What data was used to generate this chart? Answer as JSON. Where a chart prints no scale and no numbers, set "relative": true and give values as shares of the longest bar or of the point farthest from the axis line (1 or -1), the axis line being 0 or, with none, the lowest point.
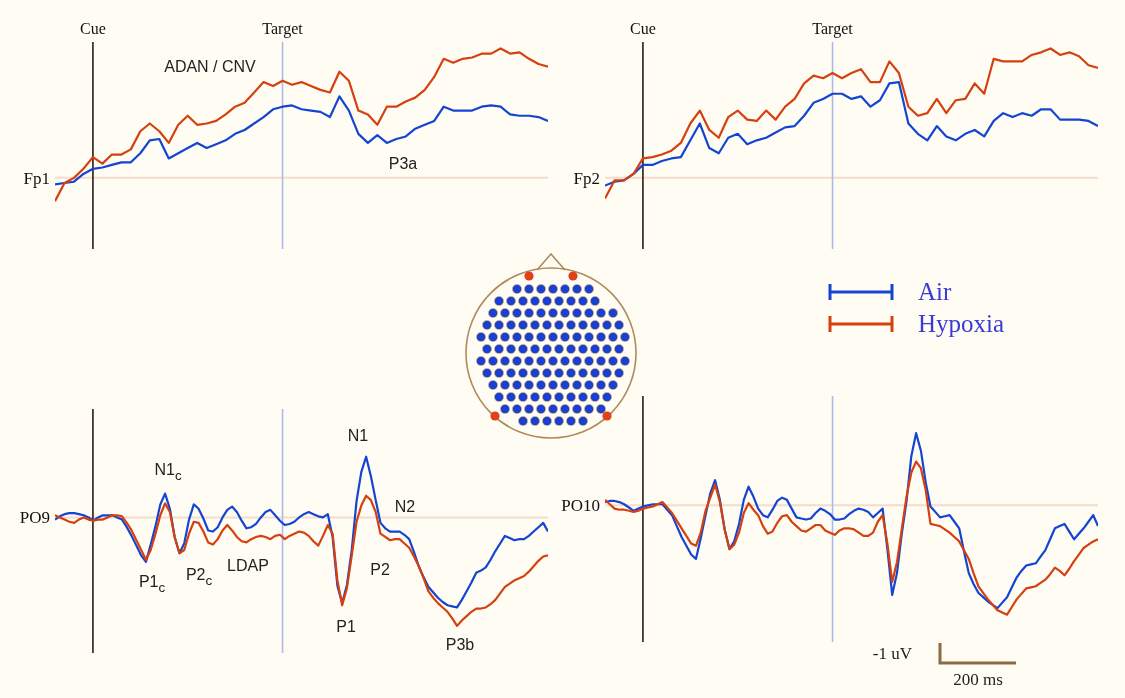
{
  "chart_data": [
    {
      "type": "line",
      "relative": true,
      "ylabel": "Fp1",
      "tick_labels": "x",
      "marker": "none",
      "line_style": "solid",
      "categories": [
        null,
        null,
        null,
        null,
        "Cue",
        null,
        null,
        null,
        null,
        null,
        null,
        null,
        null,
        null,
        null,
        null,
        null,
        null,
        null,
        null,
        null,
        null,
        null,
        null,
        "Target",
        null,
        null,
        null,
        null,
        null,
        null,
        null,
        null,
        null,
        null,
        null,
        null,
        null,
        null,
        null,
        null,
        null,
        null,
        null,
        null,
        null,
        null,
        null,
        null,
        null,
        null,
        null,
        null
      ],
      "ref_lines": [
        {
          "axis": "x",
          "value": "Cue",
          "color": "#2a1d14"
        },
        {
          "axis": "x",
          "value": "Target",
          "color": "#a9bbe6"
        }
      ],
      "annotations": [
        "ADAN / CNV",
        "P3a"
      ],
      "series": [
        {
          "color": "#1444d2",
          "values": [
            -0.05,
            -0.04,
            -0.03,
            0.03,
            0.07,
            0.08,
            0.1,
            0.12,
            0.12,
            0.19,
            0.29,
            0.3,
            0.15,
            0.19,
            0.23,
            0.27,
            0.23,
            0.26,
            0.29,
            0.34,
            0.37,
            0.42,
            0.47,
            0.53,
            0.55,
            0.56,
            0.53,
            0.52,
            0.51,
            0.47,
            0.63,
            0.52,
            0.34,
            0.27,
            0.33,
            0.27,
            0.3,
            0.32,
            0.38,
            0.41,
            0.44,
            0.55,
            0.52,
            0.52,
            0.52,
            0.55,
            0.56,
            0.55,
            0.49,
            0.48,
            0.48,
            0.47,
            0.44
          ]
        },
        {
          "color": "#d5400f",
          "values": [
            -0.18,
            -0.04,
            0,
            0.07,
            0.16,
            0.11,
            0.18,
            0.18,
            0.22,
            0.36,
            0.42,
            0.36,
            0.27,
            0.41,
            0.48,
            0.41,
            0.42,
            0.44,
            0.49,
            0.55,
            0.58,
            0.66,
            0.74,
            0.71,
            0.75,
            0.72,
            0.74,
            0.71,
            0.68,
            0.66,
            0.82,
            0.75,
            0.52,
            0.49,
            0.41,
            0.55,
            0.55,
            0.59,
            0.62,
            0.68,
            0.78,
            0.92,
            0.89,
            0.92,
            0.93,
            0.96,
            0.96,
            1.0,
            0.96,
            0.97,
            0.92,
            0.88,
            0.86
          ]
        }
      ]
    },
    {
      "type": "line",
      "relative": true,
      "ylabel": "Fp2",
      "tick_labels": "x",
      "marker": "none",
      "line_style": "solid",
      "legend": "bottom",
      "categories": [
        null,
        null,
        null,
        null,
        "Cue",
        null,
        null,
        null,
        null,
        null,
        null,
        null,
        null,
        null,
        null,
        null,
        null,
        null,
        null,
        null,
        null,
        null,
        null,
        null,
        "Target",
        null,
        null,
        null,
        null,
        null,
        null,
        null,
        null,
        null,
        null,
        null,
        null,
        null,
        null,
        null,
        null,
        null,
        null,
        null,
        null,
        null,
        null,
        null,
        null,
        null,
        null,
        null,
        null
      ],
      "ref_lines": [
        {
          "axis": "x",
          "value": "Cue",
          "color": "#2a1d14"
        },
        {
          "axis": "x",
          "value": "Target",
          "color": "#a9bbe6"
        }
      ],
      "series": [
        {
          "name": "Air",
          "color": "#1444d2",
          "values": [
            -0.06,
            -0.03,
            -0.02,
            0.03,
            0.1,
            0.1,
            0.13,
            0.15,
            0.16,
            0.29,
            0.42,
            0.23,
            0.19,
            0.31,
            0.34,
            0.26,
            0.29,
            0.31,
            0.35,
            0.39,
            0.4,
            0.48,
            0.58,
            0.61,
            0.65,
            0.65,
            0.61,
            0.63,
            0.55,
            0.6,
            0.73,
            0.74,
            0.42,
            0.34,
            0.29,
            0.4,
            0.32,
            0.29,
            0.34,
            0.37,
            0.32,
            0.44,
            0.5,
            0.47,
            0.5,
            0.48,
            0.53,
            0.53,
            0.45,
            0.45,
            0.45,
            0.44,
            0.4
          ]
        },
        {
          "name": "Hypoxia",
          "color": "#d5400f",
          "values": [
            -0.16,
            -0.02,
            -0.02,
            0.03,
            0.15,
            0.16,
            0.18,
            0.21,
            0.27,
            0.42,
            0.52,
            0.37,
            0.31,
            0.47,
            0.52,
            0.45,
            0.44,
            0.52,
            0.45,
            0.55,
            0.61,
            0.73,
            0.79,
            0.77,
            0.81,
            0.77,
            0.81,
            0.84,
            0.74,
            0.74,
            0.9,
            0.81,
            0.55,
            0.48,
            0.5,
            0.61,
            0.5,
            0.6,
            0.61,
            0.73,
            0.65,
            0.92,
            0.9,
            0.9,
            0.9,
            0.95,
            0.97,
            1.0,
            0.95,
            0.97,
            0.94,
            0.87,
            0.85
          ]
        }
      ]
    },
    {
      "type": "line",
      "relative": true,
      "ylabel": "PO9",
      "tick_labels": false,
      "marker": "none",
      "line_style": "solid",
      "categories": [
        null,
        null,
        null,
        null,
        null,
        null,
        null,
        null,
        null,
        null,
        null,
        null,
        null,
        null,
        null,
        null,
        null,
        null,
        null,
        null,
        null,
        null,
        null,
        null,
        null,
        null,
        null,
        null,
        null,
        null,
        null,
        null,
        null,
        null,
        null,
        null,
        null,
        null,
        null,
        null,
        null,
        null,
        null,
        null,
        null,
        null,
        null,
        null,
        null,
        null,
        null,
        null,
        null,
        null,
        null,
        null,
        null,
        null,
        null,
        null,
        null,
        null,
        null,
        null,
        null,
        null,
        null,
        null,
        null,
        null,
        null,
        null,
        null,
        null,
        null,
        null,
        null,
        null,
        null,
        null,
        null,
        null,
        null,
        null,
        null,
        null,
        null,
        null,
        null,
        null,
        null,
        null,
        null,
        null,
        null,
        null,
        null,
        null,
        null,
        null,
        null,
        null,
        null,
        null
      ],
      "annotations": [
        "N1$_{c}$",
        "P1$_{c}$",
        "P2$_{c}$",
        "LDAP",
        "N1",
        "N2",
        "P2",
        "P1",
        "P3b"
      ],
      "series": [
        {
          "color": "#1444d2",
          "values": [
            -0.02,
            0.01,
            0.03,
            0.04,
            0.04,
            0.03,
            0.02,
            0,
            -0.03,
            0,
            0.02,
            0.02,
            0.02,
            0,
            -0.02,
            -0.09,
            -0.17,
            -0.26,
            -0.35,
            -0.41,
            -0.25,
            -0.08,
            0.12,
            0.22,
            0.08,
            -0.18,
            -0.33,
            -0.24,
            -0.02,
            0.12,
            0.08,
            -0.01,
            -0.12,
            -0.13,
            -0.09,
            0,
            0.07,
            0.1,
            0.05,
            -0.03,
            -0.1,
            -0.09,
            -0.06,
            0,
            0.05,
            0.07,
            0.02,
            -0.03,
            -0.07,
            -0.06,
            -0.04,
            0,
            0.03,
            0.05,
            0.03,
            0.01,
            0,
            0.03,
            -0.18,
            -0.63,
            -0.79,
            -0.62,
            -0.3,
            0.15,
            0.42,
            0.56,
            0.38,
            0.16,
            -0.05,
            -0.1,
            -0.13,
            -0.13,
            -0.13,
            -0.16,
            -0.2,
            -0.32,
            -0.45,
            -0.55,
            -0.64,
            -0.69,
            -0.74,
            -0.78,
            -0.81,
            -0.82,
            -0.83,
            -0.76,
            -0.68,
            -0.6,
            -0.51,
            -0.49,
            -0.46,
            -0.39,
            -0.31,
            -0.24,
            -0.17,
            -0.19,
            -0.21,
            -0.2,
            -0.2,
            -0.17,
            -0.13,
            -0.09,
            -0.05,
            -0.13
          ]
        },
        {
          "color": "#d5400f",
          "values": [
            0.02,
            0,
            -0.02,
            -0.04,
            -0.05,
            -0.02,
            0,
            -0.02,
            -0.03,
            -0.02,
            -0.02,
            0,
            0.02,
            0.02,
            0.01,
            -0.05,
            -0.12,
            -0.21,
            -0.3,
            -0.39,
            -0.3,
            -0.15,
            0.02,
            0.13,
            0.05,
            -0.18,
            -0.33,
            -0.3,
            -0.15,
            -0.04,
            -0.05,
            -0.13,
            -0.23,
            -0.25,
            -0.2,
            -0.12,
            -0.07,
            -0.12,
            -0.18,
            -0.22,
            -0.23,
            -0.2,
            -0.18,
            -0.17,
            -0.18,
            -0.2,
            -0.17,
            -0.16,
            -0.2,
            -0.17,
            -0.15,
            -0.13,
            -0.14,
            -0.17,
            -0.22,
            -0.26,
            -0.17,
            -0.07,
            -0.15,
            -0.58,
            -0.81,
            -0.65,
            -0.35,
            -0.04,
            0.11,
            0.2,
            0.16,
            0.05,
            -0.15,
            -0.18,
            -0.21,
            -0.2,
            -0.2,
            -0.24,
            -0.28,
            -0.36,
            -0.45,
            -0.56,
            -0.68,
            -0.74,
            -0.79,
            -0.83,
            -0.87,
            -0.93,
            -1.0,
            -0.95,
            -0.91,
            -0.87,
            -0.84,
            -0.84,
            -0.83,
            -0.8,
            -0.76,
            -0.7,
            -0.64,
            -0.61,
            -0.58,
            -0.56,
            -0.54,
            -0.5,
            -0.45,
            -0.4,
            -0.36,
            -0.35
          ]
        }
      ]
    },
    {
      "type": "line",
      "relative": true,
      "ylabel": "PO10",
      "tick_labels": false,
      "marker": "none",
      "line_style": "solid",
      "categories": [
        null,
        null,
        null,
        null,
        null,
        null,
        null,
        null,
        null,
        null,
        null,
        null,
        null,
        null,
        null,
        null,
        null,
        null,
        null,
        null,
        null,
        null,
        null,
        null,
        null,
        null,
        null,
        null,
        null,
        null,
        null,
        null,
        null,
        null,
        null,
        null,
        null,
        null,
        null,
        null,
        null,
        null,
        null,
        null,
        null,
        null,
        null,
        null,
        null,
        null,
        null,
        null,
        null,
        null,
        null,
        null,
        null,
        null,
        null,
        null,
        null,
        null,
        null,
        null,
        null,
        null,
        null,
        null,
        null,
        null,
        null,
        null,
        null,
        null,
        null,
        null,
        null,
        null,
        null,
        null,
        null,
        null,
        null,
        null,
        null,
        null,
        null,
        null,
        null,
        null,
        null,
        null,
        null,
        null,
        null,
        null,
        null,
        null,
        null,
        null,
        null,
        null,
        null,
        null
      ],
      "annotations": [
        "-1 uV",
        "200 ms"
      ],
      "series": [
        {
          "color": "#1444d2",
          "values": [
            0.03,
            0.04,
            0.04,
            0.03,
            0.01,
            -0.02,
            -0.05,
            -0.03,
            -0.01,
            0,
            0.01,
            0.01,
            0.01,
            -0.04,
            -0.09,
            -0.19,
            -0.29,
            -0.37,
            -0.45,
            -0.49,
            -0.3,
            -0.09,
            0.11,
            0.23,
            0.05,
            -0.22,
            -0.4,
            -0.33,
            -0.17,
            0.05,
            0.17,
            0.08,
            -0.03,
            -0.09,
            -0.11,
            -0.04,
            0.04,
            0.07,
            0.05,
            -0.03,
            -0.11,
            -0.12,
            -0.13,
            -0.12,
            -0.07,
            -0.03,
            -0.05,
            -0.08,
            -0.13,
            -0.13,
            -0.12,
            -0.08,
            -0.05,
            -0.03,
            -0.04,
            -0.06,
            -0.11,
            -0.07,
            -0.03,
            -0.4,
            -0.82,
            -0.62,
            -0.26,
            0.04,
            0.45,
            0.66,
            0.5,
            0.21,
            -0.01,
            -0.06,
            -0.11,
            -0.1,
            -0.09,
            -0.15,
            -0.21,
            -0.42,
            -0.62,
            -0.72,
            -0.8,
            -0.84,
            -0.88,
            -0.91,
            -0.94,
            -0.89,
            -0.84,
            -0.75,
            -0.66,
            -0.6,
            -0.55,
            -0.54,
            -0.53,
            -0.47,
            -0.41,
            -0.31,
            -0.21,
            -0.19,
            -0.17,
            -0.24,
            -0.31,
            -0.26,
            -0.21,
            -0.15,
            -0.09,
            -0.19
          ]
        },
        {
          "color": "#d5400f",
          "values": [
            0.05,
            0.01,
            -0.03,
            -0.04,
            -0.04,
            -0.05,
            -0.06,
            -0.05,
            -0.03,
            -0.02,
            -0.01,
            0.01,
            0.03,
            -0.02,
            -0.07,
            -0.14,
            -0.21,
            -0.28,
            -0.35,
            -0.37,
            -0.25,
            -0.05,
            0.07,
            0.19,
            0.03,
            -0.22,
            -0.4,
            -0.36,
            -0.25,
            -0.07,
            0.02,
            -0.04,
            -0.09,
            -0.19,
            -0.26,
            -0.24,
            -0.16,
            -0.1,
            -0.09,
            -0.15,
            -0.19,
            -0.23,
            -0.24,
            -0.21,
            -0.18,
            -0.18,
            -0.23,
            -0.25,
            -0.27,
            -0.23,
            -0.21,
            -0.21,
            -0.22,
            -0.25,
            -0.28,
            -0.28,
            -0.25,
            -0.15,
            -0.09,
            -0.35,
            -0.7,
            -0.52,
            -0.22,
            0.08,
            0.3,
            0.4,
            0.34,
            0.14,
            -0.17,
            -0.18,
            -0.19,
            -0.22,
            -0.25,
            -0.29,
            -0.33,
            -0.41,
            -0.49,
            -0.62,
            -0.74,
            -0.8,
            -0.86,
            -0.91,
            -0.96,
            -0.98,
            -1.0,
            -0.93,
            -0.86,
            -0.81,
            -0.76,
            -0.75,
            -0.74,
            -0.71,
            -0.68,
            -0.63,
            -0.57,
            -0.6,
            -0.64,
            -0.58,
            -0.51,
            -0.45,
            -0.39,
            -0.36,
            -0.33,
            -0.31
          ]
        }
      ]
    }
  ]
}
